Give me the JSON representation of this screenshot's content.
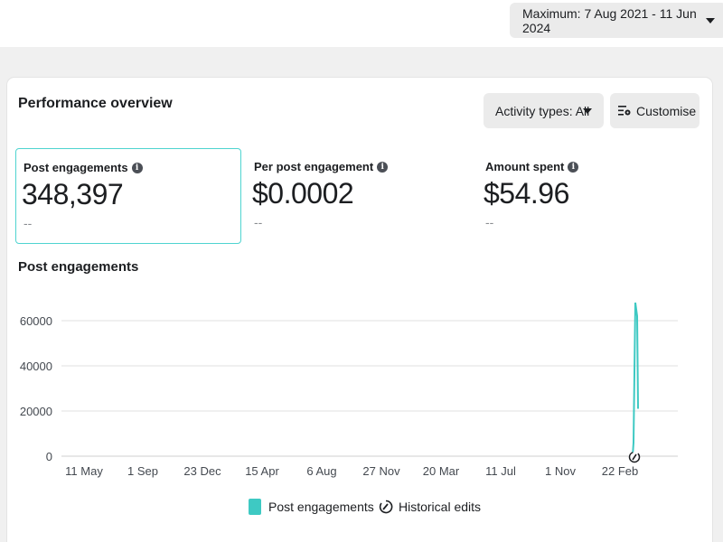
{
  "header": {
    "date_range": "Maximum: 7 Aug 2021 - 11 Jun 2024"
  },
  "card": {
    "title": "Performance overview",
    "activity_types_label": "Activity types: All",
    "customise_label": "Customise"
  },
  "metrics": [
    {
      "label": "Post engagements",
      "value": "348,397",
      "compare": "--"
    },
    {
      "label": "Per post engagement",
      "value": "$0.0002",
      "compare": "--"
    },
    {
      "label": "Amount spent",
      "value": "$54.96",
      "compare": "--"
    }
  ],
  "chart_title": "Post engagements",
  "colors": {
    "series": "#3ec9c3",
    "selected_border": "#4fd4d0"
  },
  "chart_data": {
    "type": "line",
    "title": "Post engagements",
    "xlabel": "",
    "ylabel": "",
    "ylim": [
      0,
      70000
    ],
    "y_ticks": [
      0,
      20000,
      40000,
      60000
    ],
    "x_ticks": [
      "11 May",
      "1 Sep",
      "23 Dec",
      "15 Apr",
      "6 Aug",
      "27 Nov",
      "20 Mar",
      "11 Jul",
      "1 Nov",
      "22 Feb"
    ],
    "series": [
      {
        "name": "Post engagements",
        "values": [
          0,
          6000,
          68000,
          62000,
          21000
        ]
      }
    ],
    "legend": [
      "Post engagements",
      "Historical edits"
    ]
  }
}
